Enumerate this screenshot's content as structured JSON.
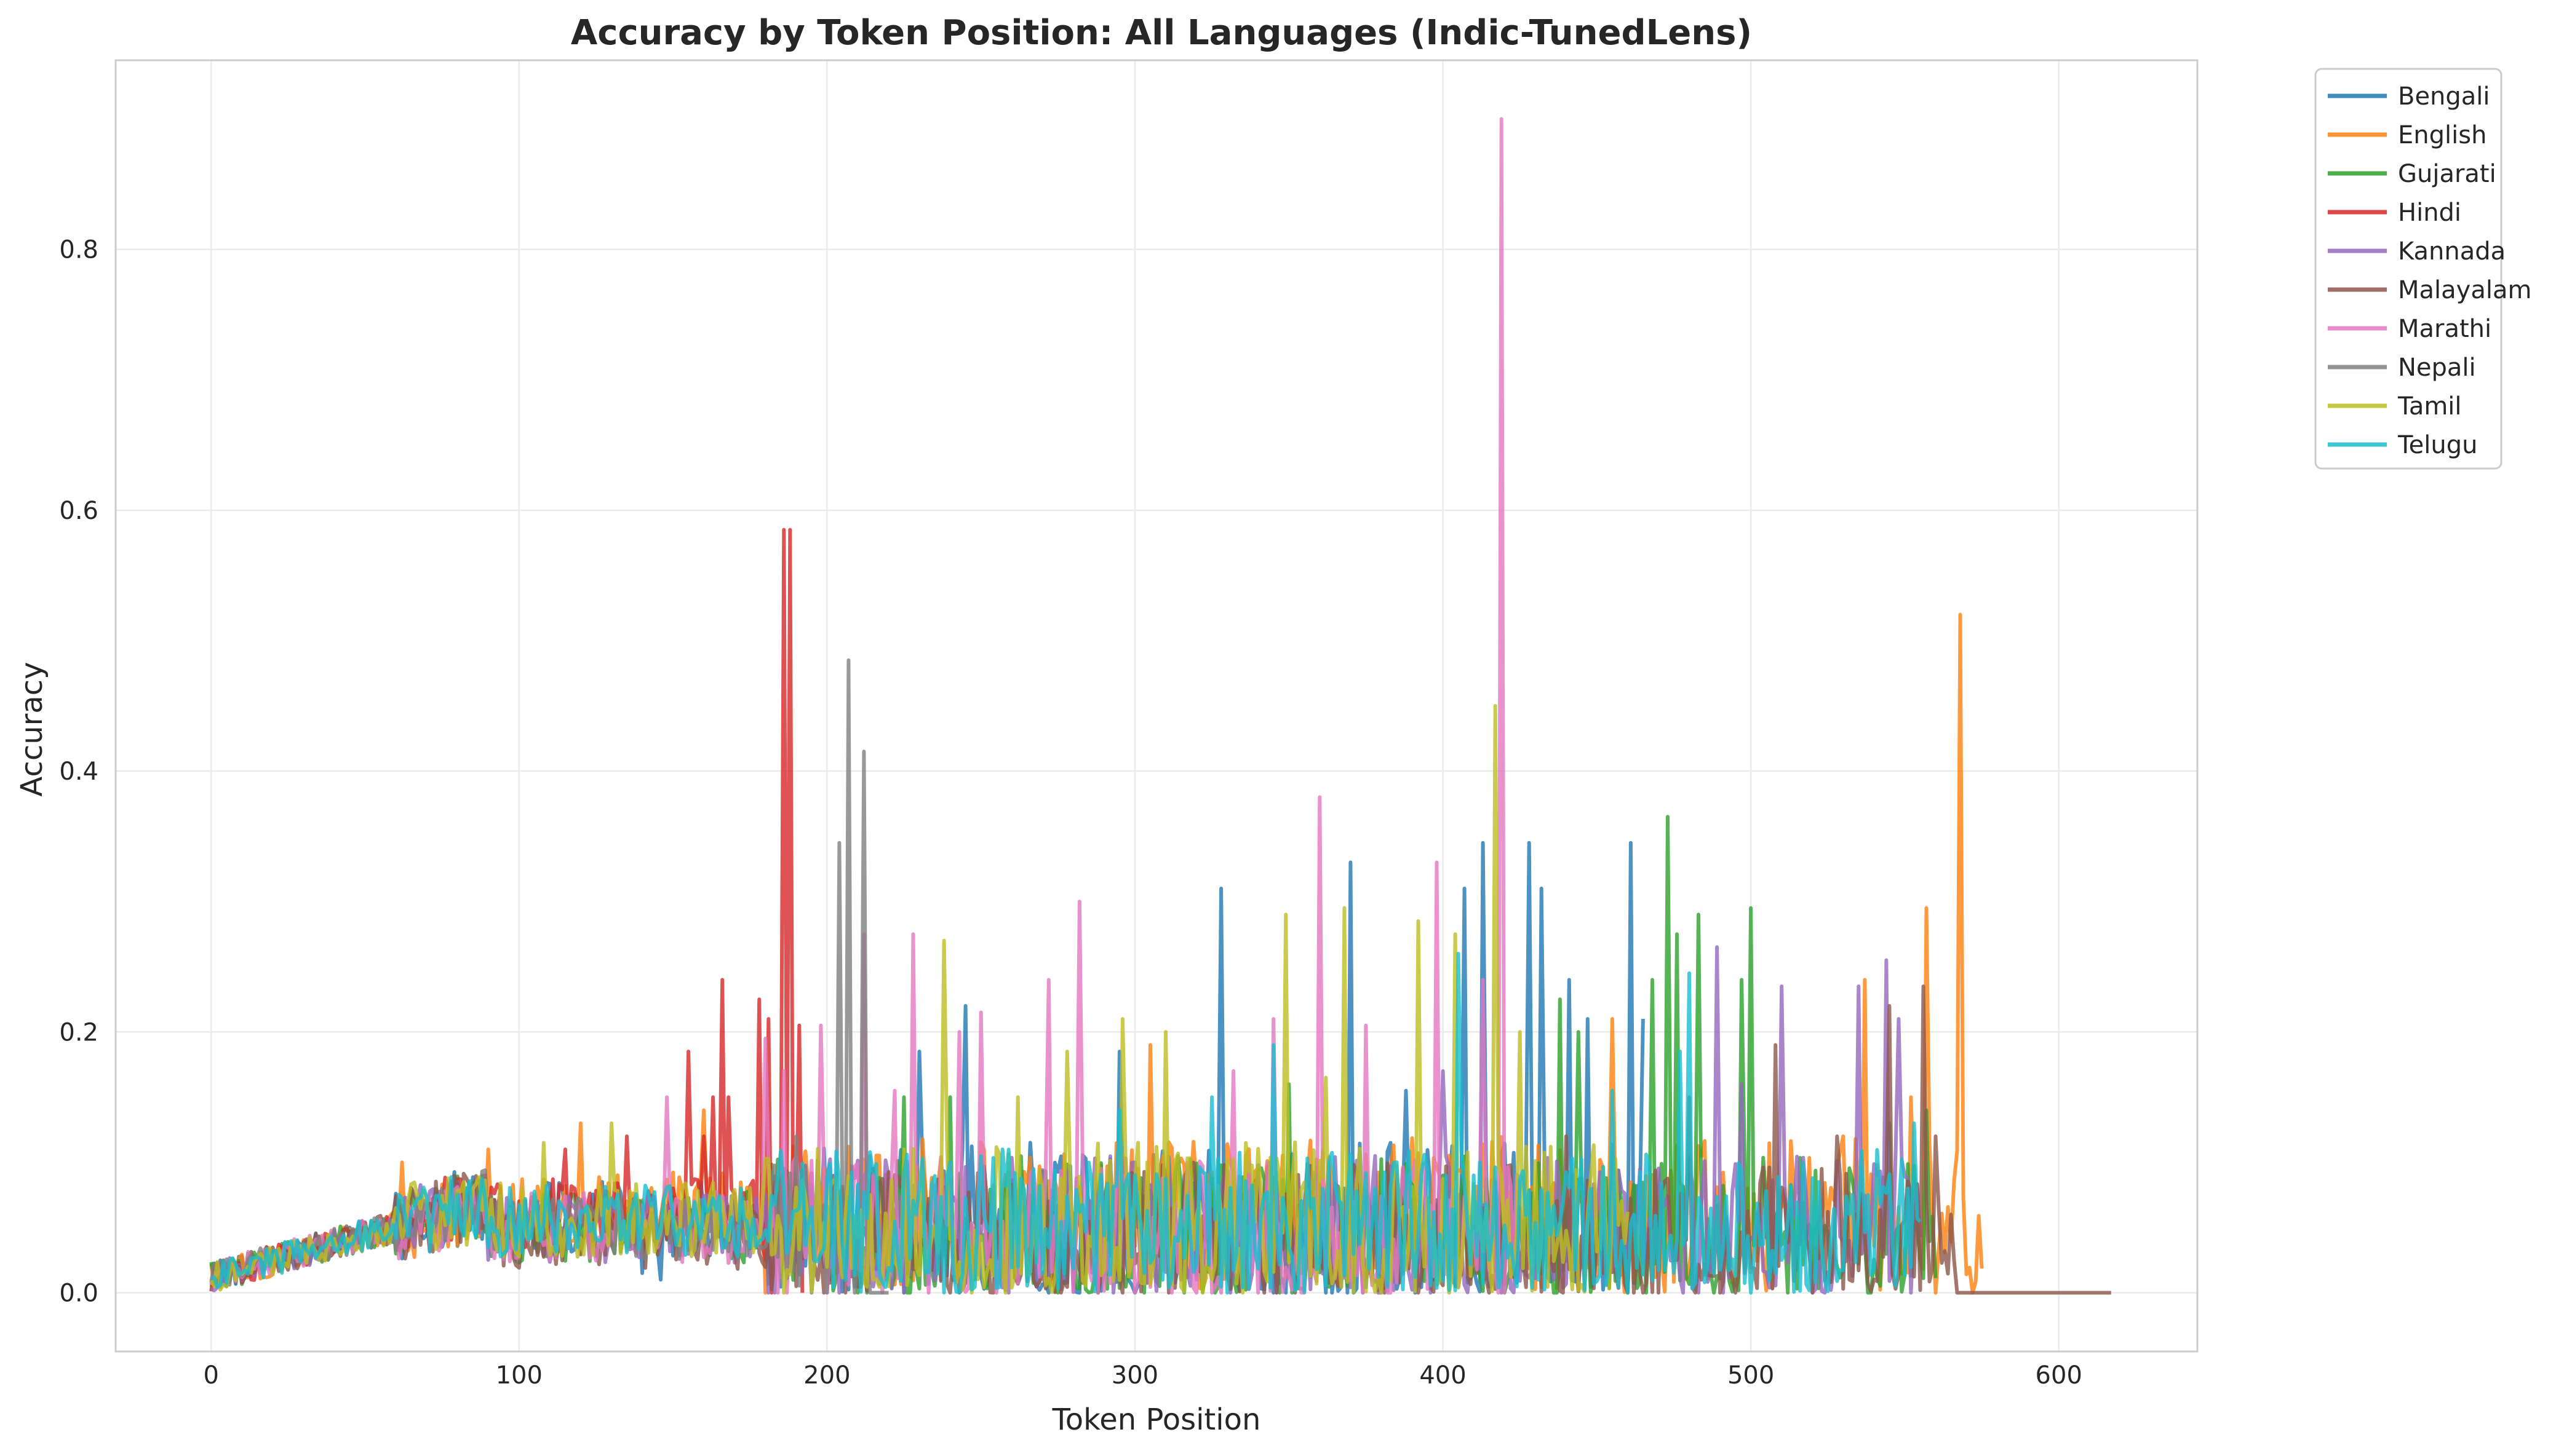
{
  "chart_data": {
    "type": "line",
    "title": "Accuracy by Token Position: All Languages (Indic-TunedLens)",
    "xlabel": "Token Position",
    "ylabel": "Accuracy",
    "xlim": [
      -31,
      645
    ],
    "ylim": [
      -0.045,
      0.945
    ],
    "xticks": [
      0,
      100,
      200,
      300,
      400,
      500,
      600
    ],
    "yticks": [
      0.0,
      0.2,
      0.4,
      0.6,
      0.8
    ],
    "xtick_labels": [
      "0",
      "100",
      "200",
      "300",
      "400",
      "500",
      "600"
    ],
    "ytick_labels": [
      "0.0",
      "0.2",
      "0.4",
      "0.6",
      "0.8"
    ],
    "grid": true,
    "legend_position": "outside-top-right",
    "series": [
      {
        "name": "Bengali",
        "color": "#1f77b4",
        "max_x": 465,
        "base": 0.055,
        "amp": 0.055,
        "peaks": [
          [
            230,
            0.185
          ],
          [
            245,
            0.22
          ],
          [
            295,
            0.185
          ],
          [
            328,
            0.31
          ],
          [
            370,
            0.33
          ],
          [
            388,
            0.155
          ],
          [
            407,
            0.31
          ],
          [
            413,
            0.345
          ],
          [
            428,
            0.345
          ],
          [
            432,
            0.31
          ],
          [
            441,
            0.24
          ],
          [
            447,
            0.21
          ],
          [
            461,
            0.345
          ],
          [
            465,
            0.21
          ]
        ],
        "zeros": [
          [
            140,
            0.015
          ],
          [
            146,
            0.01
          ],
          [
            225,
            0.0
          ],
          [
            300,
            0.0
          ],
          [
            345,
            0.0
          ]
        ]
      },
      {
        "name": "English",
        "color": "#ff7f0e",
        "max_x": 575,
        "base": 0.065,
        "amp": 0.05,
        "peaks": [
          [
            62,
            0.1
          ],
          [
            90,
            0.11
          ],
          [
            120,
            0.13
          ],
          [
            160,
            0.14
          ],
          [
            305,
            0.19
          ],
          [
            455,
            0.21
          ],
          [
            530,
            0.12
          ],
          [
            537,
            0.24
          ],
          [
            552,
            0.15
          ],
          [
            557,
            0.295
          ],
          [
            568,
            0.52
          ],
          [
            576,
            0.105
          ]
        ],
        "zeros": [
          [
            180,
            0.0
          ],
          [
            560,
            0.0
          ],
          [
            572,
            0.0
          ]
        ]
      },
      {
        "name": "Gujarati",
        "color": "#2ca02c",
        "max_x": 560,
        "base": 0.05,
        "amp": 0.05,
        "peaks": [
          [
            225,
            0.15
          ],
          [
            240,
            0.15
          ],
          [
            350,
            0.16
          ],
          [
            438,
            0.225
          ],
          [
            444,
            0.2
          ],
          [
            468,
            0.24
          ],
          [
            473,
            0.365
          ],
          [
            476,
            0.275
          ],
          [
            483,
            0.29
          ],
          [
            497,
            0.24
          ],
          [
            500,
            0.295
          ],
          [
            545,
            0.13
          ],
          [
            557,
            0.14
          ]
        ],
        "zeros": [
          [
            210,
            0.0
          ],
          [
            420,
            0.0
          ],
          [
            488,
            0.0
          ]
        ]
      },
      {
        "name": "Hindi",
        "color": "#d62728",
        "max_x": 192,
        "base": 0.06,
        "amp": 0.05,
        "peaks": [
          [
            115,
            0.11
          ],
          [
            135,
            0.12
          ],
          [
            155,
            0.185
          ],
          [
            160,
            0.12
          ],
          [
            163,
            0.15
          ],
          [
            166,
            0.24
          ],
          [
            168,
            0.15
          ],
          [
            178,
            0.225
          ],
          [
            181,
            0.21
          ],
          [
            186,
            0.585
          ],
          [
            188,
            0.585
          ],
          [
            191,
            0.205
          ]
        ],
        "zeros": [
          [
            182,
            0.0
          ],
          [
            192,
            0.0
          ]
        ]
      },
      {
        "name": "Kannada",
        "color": "#9467bd",
        "max_x": 555,
        "base": 0.05,
        "amp": 0.05,
        "peaks": [
          [
            400,
            0.17
          ],
          [
            489,
            0.265
          ],
          [
            497,
            0.16
          ],
          [
            510,
            0.235
          ],
          [
            535,
            0.235
          ],
          [
            544,
            0.255
          ],
          [
            548,
            0.21
          ]
        ],
        "zeros": [
          [
            380,
            0.0
          ],
          [
            520,
            0.0
          ]
        ]
      },
      {
        "name": "Malayalam",
        "color": "#8c564b",
        "max_x": 617,
        "base": 0.045,
        "amp": 0.05,
        "peaks": [
          [
            440,
            0.12
          ],
          [
            480,
            0.15
          ],
          [
            508,
            0.19
          ],
          [
            528,
            0.12
          ],
          [
            545,
            0.22
          ],
          [
            556,
            0.235
          ],
          [
            560,
            0.12
          ],
          [
            565,
            0.06
          ],
          [
            585,
            0.085
          ],
          [
            587,
            0.035
          ]
        ],
        "zeros": [
          [
            470,
            0.0
          ],
          [
            520,
            0.0
          ]
        ],
        "tail": {
          "from": 567,
          "value": 0.0
        }
      },
      {
        "name": "Marathi",
        "color": "#e377c2",
        "max_x": 425,
        "base": 0.05,
        "amp": 0.05,
        "peaks": [
          [
            148,
            0.15
          ],
          [
            180,
            0.195
          ],
          [
            186,
            0.17
          ],
          [
            198,
            0.205
          ],
          [
            212,
            0.275
          ],
          [
            222,
            0.155
          ],
          [
            228,
            0.275
          ],
          [
            243,
            0.2
          ],
          [
            250,
            0.215
          ],
          [
            272,
            0.24
          ],
          [
            282,
            0.3
          ],
          [
            332,
            0.17
          ],
          [
            345,
            0.21
          ],
          [
            360,
            0.38
          ],
          [
            375,
            0.205
          ],
          [
            398,
            0.33
          ],
          [
            413,
            0.24
          ],
          [
            419,
            0.9
          ]
        ],
        "zeros": [
          [
            233,
            0.0
          ],
          [
            288,
            0.0
          ],
          [
            320,
            0.0
          ],
          [
            383,
            0.0
          ]
        ]
      },
      {
        "name": "Nepali",
        "color": "#7f7f7f",
        "max_x": 220,
        "base": 0.05,
        "amp": 0.045,
        "peaks": [
          [
            190,
            0.12
          ],
          [
            204,
            0.345
          ],
          [
            207,
            0.485
          ],
          [
            212,
            0.415
          ]
        ],
        "zeros": [
          [
            195,
            0.0
          ],
          [
            200,
            0.0
          ],
          [
            209,
            0.0
          ]
        ],
        "tail": {
          "from": 214,
          "value": 0.0
        }
      },
      {
        "name": "Tamil",
        "color": "#bcbd22",
        "max_x": 460,
        "base": 0.055,
        "amp": 0.055,
        "peaks": [
          [
            108,
            0.115
          ],
          [
            130,
            0.13
          ],
          [
            238,
            0.27
          ],
          [
            262,
            0.15
          ],
          [
            278,
            0.185
          ],
          [
            296,
            0.21
          ],
          [
            310,
            0.2
          ],
          [
            349,
            0.29
          ],
          [
            362,
            0.165
          ],
          [
            368,
            0.295
          ],
          [
            392,
            0.285
          ],
          [
            404,
            0.275
          ],
          [
            417,
            0.45
          ],
          [
            425,
            0.2
          ]
        ],
        "zeros": [
          [
            258,
            0.0
          ],
          [
            335,
            0.0
          ],
          [
            380,
            0.0
          ]
        ]
      },
      {
        "name": "Telugu",
        "color": "#17becf",
        "max_x": 555,
        "base": 0.055,
        "amp": 0.05,
        "peaks": [
          [
            295,
            0.14
          ],
          [
            325,
            0.15
          ],
          [
            345,
            0.19
          ],
          [
            405,
            0.26
          ],
          [
            455,
            0.155
          ],
          [
            477,
            0.185
          ],
          [
            480,
            0.245
          ],
          [
            522,
            0.085
          ],
          [
            538,
            0.075
          ],
          [
            553,
            0.13
          ]
        ],
        "zeros": [
          [
            330,
            0.0
          ],
          [
            460,
            0.0
          ],
          [
            500,
            0.0
          ]
        ]
      }
    ]
  }
}
